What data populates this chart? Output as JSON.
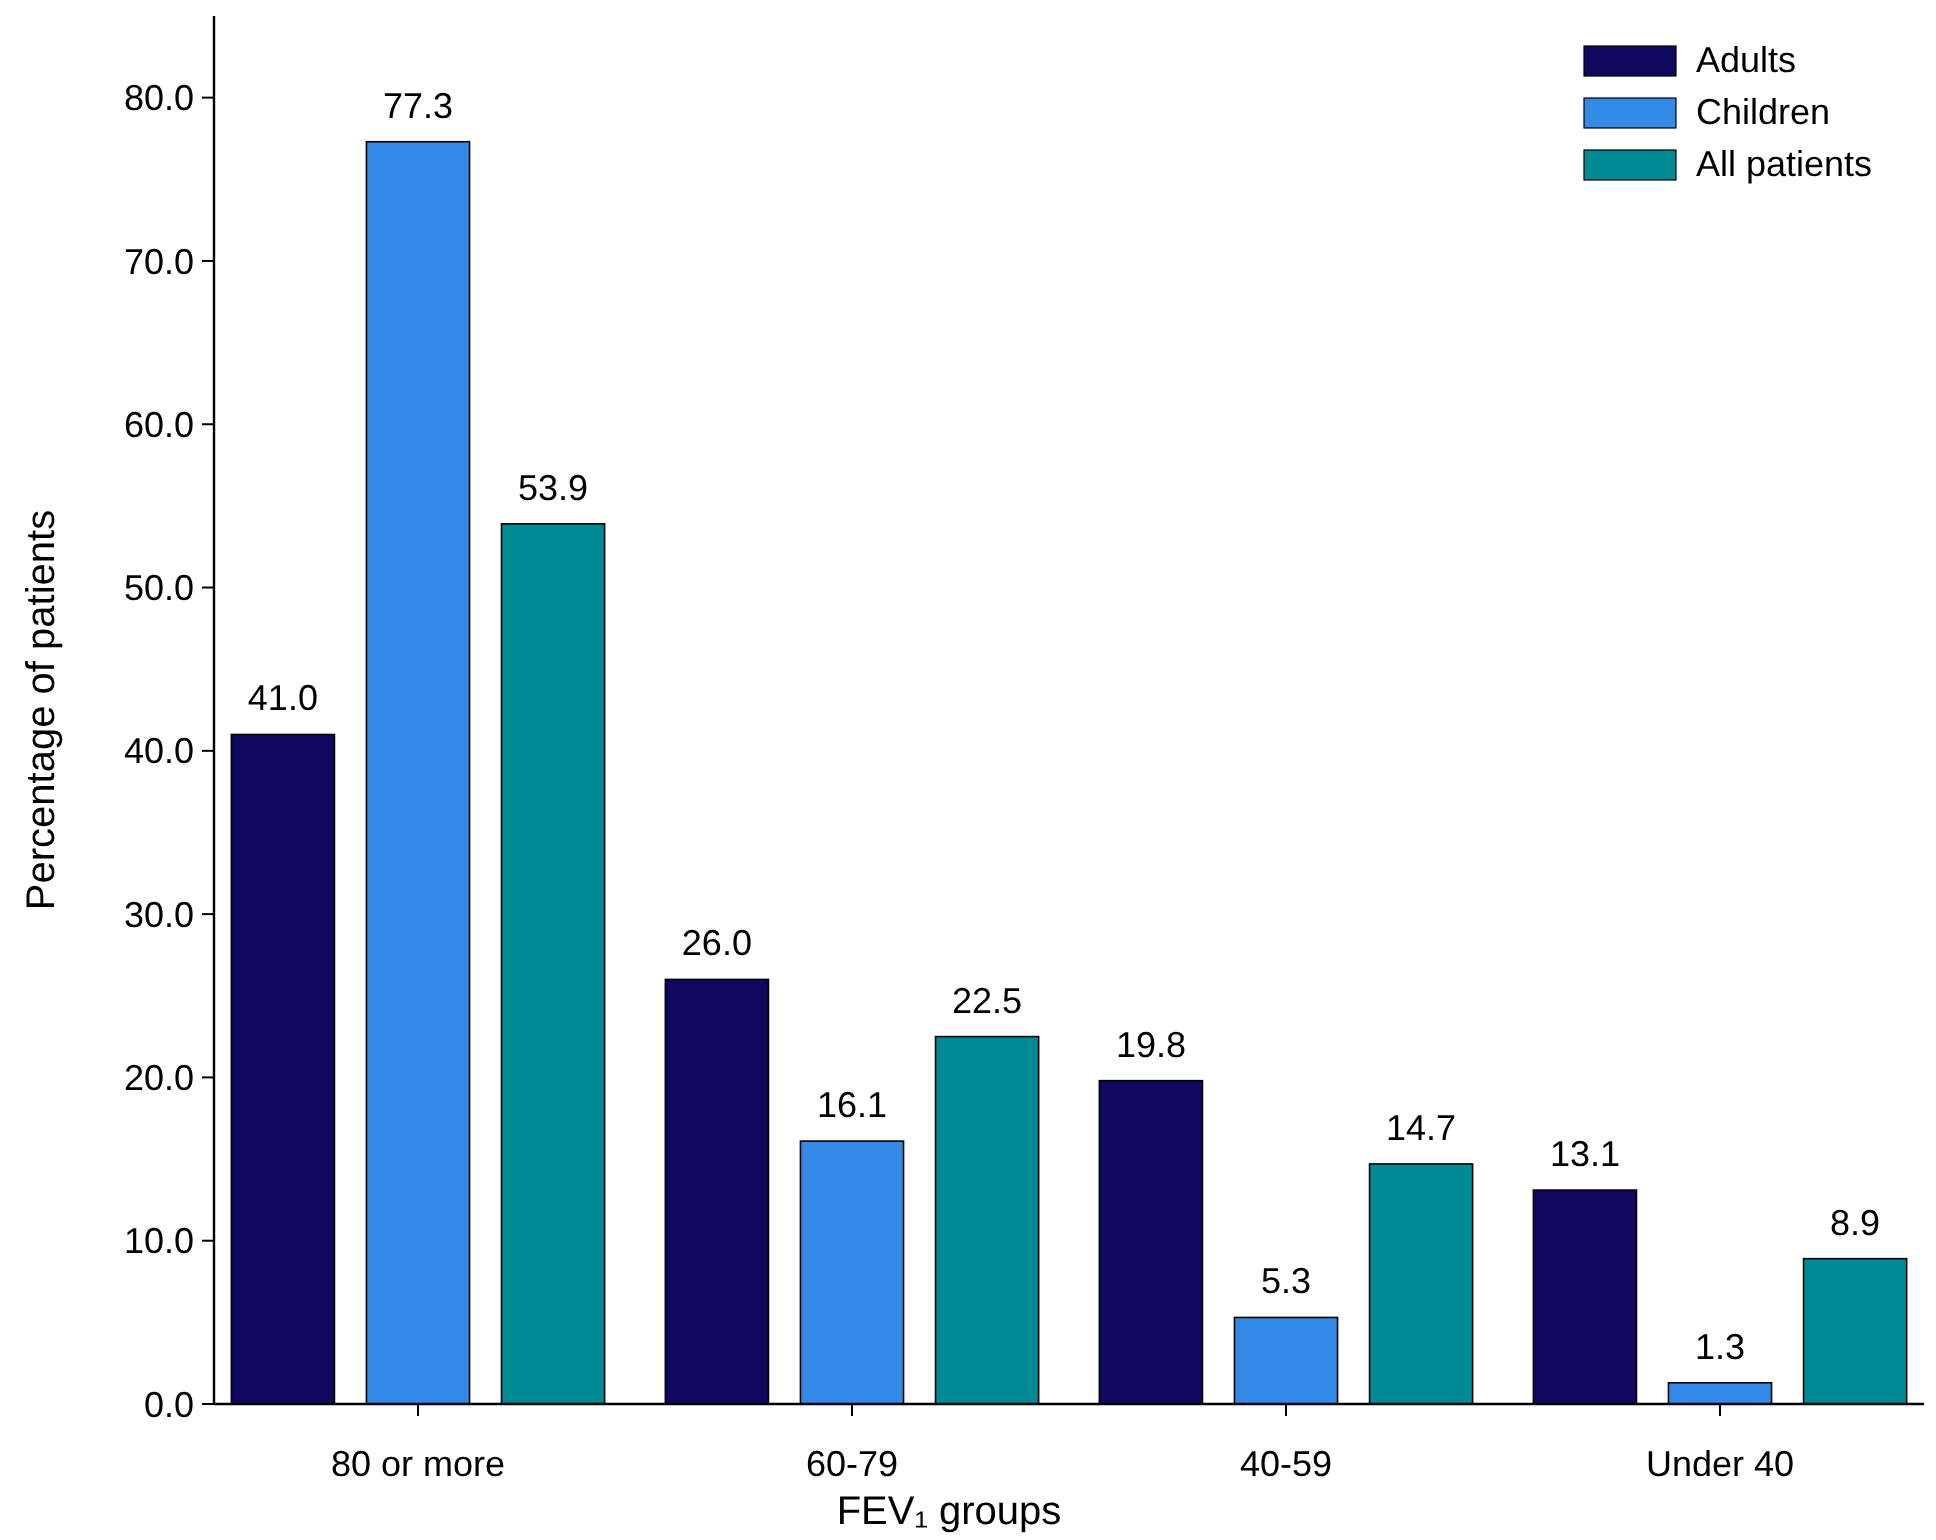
{
  "chart_data": {
    "type": "bar",
    "xlabel": "FEV₁ groups",
    "ylabel": "Percentage of patients",
    "categories": [
      "80 or more",
      "60-79",
      "40-59",
      "Under 40"
    ],
    "series": [
      {
        "name": "Adults",
        "color": "#10085e",
        "values": [
          41.0,
          26.0,
          19.8,
          13.1
        ],
        "value_labels": [
          "41.0",
          "26.0",
          "19.8",
          "13.1"
        ]
      },
      {
        "name": "Children",
        "color": "#3389e6",
        "values": [
          77.3,
          16.1,
          5.3,
          1.3
        ],
        "value_labels": [
          "77.3",
          "16.1",
          "5.3",
          "1.3"
        ]
      },
      {
        "name": "All patients",
        "color": "#008b94",
        "values": [
          53.9,
          22.5,
          14.7,
          8.9
        ],
        "value_labels": [
          "53.9",
          "22.5",
          "14.7",
          "8.9"
        ]
      }
    ],
    "ylim": [
      0,
      85
    ],
    "yticks": [
      {
        "value": 0,
        "label": "0.0"
      },
      {
        "value": 10,
        "label": "10.0"
      },
      {
        "value": 20,
        "label": "20.0"
      },
      {
        "value": 30,
        "label": "30.0"
      },
      {
        "value": 40,
        "label": "40.0"
      },
      {
        "value": 50,
        "label": "50.0"
      },
      {
        "value": 60,
        "label": "60.0"
      },
      {
        "value": 70,
        "label": "70.0"
      },
      {
        "value": 80,
        "label": "80.0"
      }
    ],
    "grid": false,
    "legend": "top right"
  }
}
